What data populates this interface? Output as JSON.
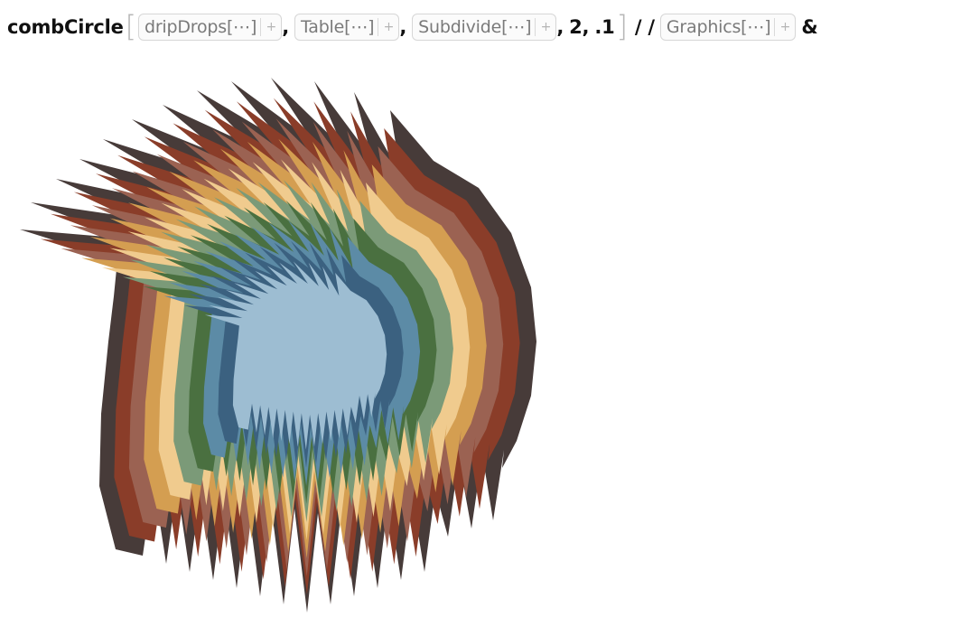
{
  "input": {
    "function_name": "combCircle",
    "open_bracket": "[",
    "close_bracket": "]",
    "args": [
      {
        "label": "dripDrops[⋯]",
        "icon": "plus-icon"
      },
      {
        "label": "Table[⋯]",
        "icon": "plus-icon"
      },
      {
        "label": "Subdivide[⋯]",
        "icon": "plus-icon"
      }
    ],
    "comma": ",",
    "num1": "2",
    "num2": ".1",
    "postfix": "/ /",
    "graphics": {
      "label": "Graphics[⋯]",
      "icon": "plus-icon"
    },
    "amp": "&",
    "plus_glyph": "+"
  },
  "output": {
    "palette": [
      "#473b39",
      "#8a3d29",
      "#9b6252",
      "#d49e51",
      "#f0cb8e",
      "#7b9a78",
      "#4a7040",
      "#5c8ba6",
      "#3b6180",
      "#9dbdd2"
    ]
  }
}
